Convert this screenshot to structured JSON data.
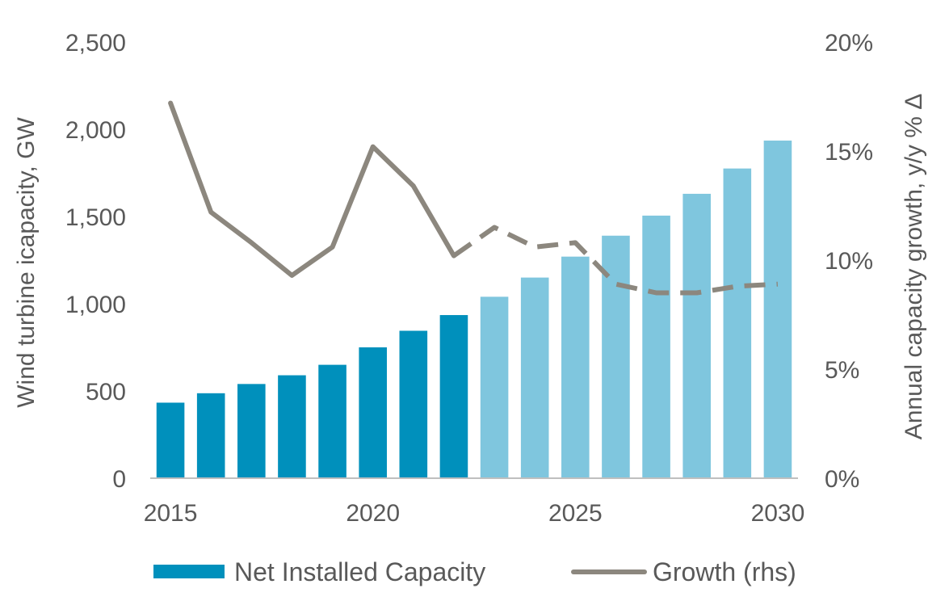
{
  "chart_data": {
    "type": "bar",
    "x": [
      2015,
      2016,
      2017,
      2018,
      2019,
      2020,
      2021,
      2022,
      2023,
      2024,
      2025,
      2026,
      2027,
      2028,
      2029,
      2030
    ],
    "x_tick_labels": [
      "2015",
      "2020",
      "2025",
      "2030"
    ],
    "ylabel": "Wind turbine icapacity, GW",
    "y2label": "Annual capacity growth, y/y % Δ",
    "ylim": [
      0,
      2500
    ],
    "y_ticks": [
      0,
      500,
      1000,
      1500,
      2000,
      2500
    ],
    "y_tick_labels": [
      "0",
      "500",
      "1,000",
      "1,500",
      "2,000",
      "2,500"
    ],
    "y2lim": [
      0,
      20
    ],
    "y2_ticks": [
      0,
      5,
      10,
      15,
      20
    ],
    "y2_tick_labels": [
      "0%",
      "5%",
      "10%",
      "15%",
      "20%"
    ],
    "grid": false,
    "legend_position": "bottom",
    "series": [
      {
        "name": "Net Installed Capacity",
        "type": "bar",
        "axis": "left",
        "values": [
          433,
          487,
          540,
          590,
          650,
          750,
          845,
          935,
          1040,
          1150,
          1270,
          1390,
          1505,
          1630,
          1775,
          1935
        ],
        "historical_color": "#0090BC",
        "forecast_color": "#7FC6DE",
        "forecast_from": 2023
      },
      {
        "name": "Growth (rhs)",
        "type": "line",
        "axis": "right",
        "values": [
          17.2,
          12.2,
          10.8,
          9.3,
          10.6,
          15.2,
          13.4,
          10.2,
          11.5,
          10.6,
          10.8,
          8.9,
          8.5,
          8.5,
          8.8,
          8.9
        ],
        "color": "#8C877E",
        "dashed_from": 2022
      }
    ]
  }
}
